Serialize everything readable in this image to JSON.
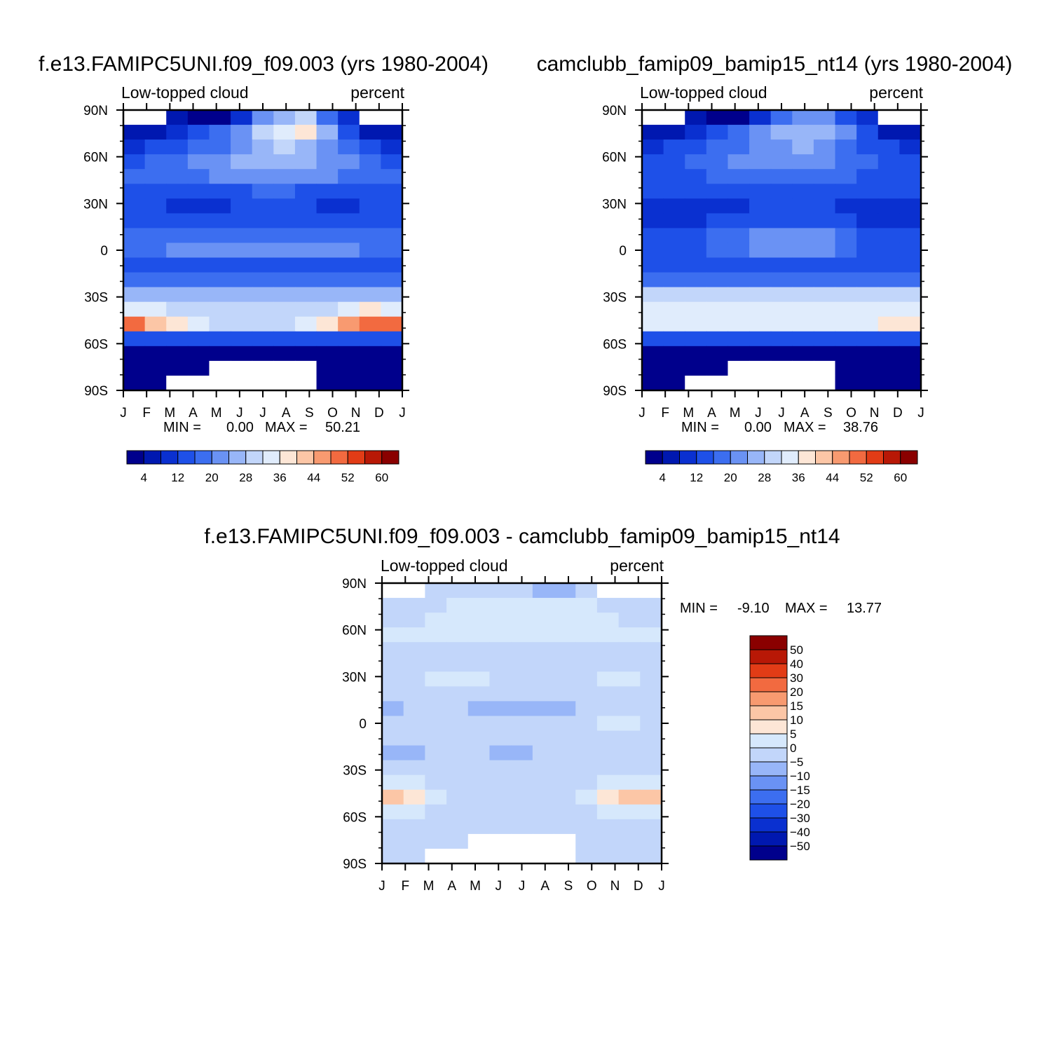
{
  "chart_data": [
    {
      "type": "heatmap",
      "id": "p1",
      "title": "f.e13.FAMIPC5UNI.f09_f09.003 (yrs 1980-2004)",
      "left_label": "Low-topped cloud",
      "right_label": "percent",
      "x_tick_labels": [
        "J",
        "F",
        "M",
        "A",
        "M",
        "J",
        "J",
        "A",
        "S",
        "O",
        "N",
        "D",
        "J"
      ],
      "y_tick_labels": [
        "90N",
        "60N",
        "30N",
        "0",
        "30S",
        "60S",
        "90S"
      ],
      "y_values": [
        90,
        60,
        30,
        0,
        -30,
        -60,
        -90
      ],
      "xlim": [
        0,
        12
      ],
      "ylim": [
        -90,
        90
      ],
      "stats": {
        "min_label": "MIN =",
        "min": "0.00",
        "max_label": "MAX =",
        "max": "50.21"
      },
      "colorbar": {
        "levels": [
          4,
          8,
          12,
          16,
          20,
          24,
          28,
          32,
          36,
          40,
          44,
          48,
          52,
          56,
          60
        ],
        "tick_labels": [
          "4",
          "12",
          "20",
          "28",
          "36",
          "44",
          "52",
          "60"
        ],
        "colors": [
          "#00008c",
          "#0018b0",
          "#0a30d0",
          "#1e50e8",
          "#3c6ef0",
          "#6a92f4",
          "#98b6f8",
          "#c2d6fa",
          "#e0ecfc",
          "#fde6d6",
          "#fcc6a6",
          "#f89a70",
          "#f26a40",
          "#e23c16",
          "#b81806",
          "#8a0000"
        ]
      },
      "field_grid": [
        [
          0,
          0,
          6,
          3,
          2,
          8,
          22,
          26,
          28,
          18,
          8,
          0,
          0
        ],
        [
          6,
          6,
          8,
          12,
          18,
          22,
          30,
          34,
          36,
          24,
          14,
          6,
          6
        ],
        [
          10,
          12,
          14,
          16,
          18,
          22,
          26,
          28,
          26,
          22,
          16,
          12,
          10
        ],
        [
          14,
          16,
          18,
          20,
          22,
          24,
          26,
          26,
          24,
          22,
          20,
          16,
          14
        ],
        [
          16,
          16,
          18,
          18,
          20,
          20,
          22,
          22,
          20,
          20,
          18,
          16,
          16
        ],
        [
          14,
          14,
          12,
          12,
          14,
          14,
          16,
          16,
          14,
          14,
          12,
          14,
          14
        ],
        [
          12,
          12,
          10,
          10,
          10,
          12,
          12,
          12,
          12,
          10,
          10,
          12,
          12
        ],
        [
          14,
          14,
          14,
          12,
          12,
          12,
          12,
          14,
          14,
          14,
          14,
          14,
          14
        ],
        [
          16,
          16,
          16,
          18,
          18,
          18,
          18,
          18,
          18,
          18,
          18,
          16,
          16
        ],
        [
          18,
          18,
          20,
          20,
          20,
          22,
          22,
          22,
          22,
          20,
          20,
          18,
          18
        ],
        [
          14,
          14,
          14,
          14,
          14,
          14,
          14,
          14,
          14,
          14,
          14,
          14,
          14
        ],
        [
          18,
          18,
          18,
          18,
          18,
          18,
          18,
          18,
          18,
          18,
          18,
          18,
          18
        ],
        [
          26,
          26,
          26,
          26,
          26,
          26,
          26,
          26,
          26,
          26,
          26,
          26,
          26
        ],
        [
          34,
          32,
          30,
          28,
          28,
          28,
          28,
          28,
          28,
          30,
          34,
          36,
          34
        ],
        [
          48,
          42,
          36,
          32,
          30,
          30,
          30,
          30,
          32,
          36,
          44,
          50,
          48
        ],
        [
          12,
          12,
          12,
          12,
          12,
          12,
          12,
          12,
          12,
          12,
          12,
          12,
          12
        ],
        [
          2,
          2,
          2,
          2,
          2,
          2,
          2,
          2,
          2,
          2,
          2,
          2,
          2
        ],
        [
          2,
          2,
          2,
          2,
          0,
          0,
          0,
          0,
          0,
          2,
          2,
          2,
          2
        ],
        [
          2,
          2,
          0,
          0,
          0,
          0,
          0,
          0,
          0,
          2,
          2,
          2,
          2
        ]
      ]
    },
    {
      "type": "heatmap",
      "id": "p2",
      "title": "camclubb_famip09_bamip15_nt14 (yrs 1980-2004)",
      "left_label": "Low-topped cloud",
      "right_label": "percent",
      "x_tick_labels": [
        "J",
        "F",
        "M",
        "A",
        "M",
        "J",
        "J",
        "A",
        "S",
        "O",
        "N",
        "D",
        "J"
      ],
      "y_tick_labels": [
        "90N",
        "60N",
        "30N",
        "0",
        "30S",
        "60S",
        "90S"
      ],
      "y_values": [
        90,
        60,
        30,
        0,
        -30,
        -60,
        -90
      ],
      "xlim": [
        0,
        12
      ],
      "ylim": [
        -90,
        90
      ],
      "stats": {
        "min_label": "MIN =",
        "min": "0.00",
        "max_label": "MAX =",
        "max": "38.76"
      },
      "colorbar": {
        "levels": [
          4,
          8,
          12,
          16,
          20,
          24,
          28,
          32,
          36,
          40,
          44,
          48,
          52,
          56,
          60
        ],
        "tick_labels": [
          "4",
          "12",
          "20",
          "28",
          "36",
          "44",
          "52",
          "60"
        ],
        "colors": [
          "#00008c",
          "#0018b0",
          "#0a30d0",
          "#1e50e8",
          "#3c6ef0",
          "#6a92f4",
          "#98b6f8",
          "#c2d6fa",
          "#e0ecfc",
          "#fde6d6",
          "#fcc6a6",
          "#f89a70",
          "#f26a40",
          "#e23c16",
          "#b81806",
          "#8a0000"
        ]
      },
      "field_grid": [
        [
          0,
          0,
          6,
          3,
          2,
          8,
          18,
          22,
          22,
          14,
          8,
          0,
          0
        ],
        [
          6,
          6,
          8,
          12,
          16,
          20,
          24,
          26,
          26,
          20,
          12,
          6,
          6
        ],
        [
          10,
          12,
          14,
          16,
          18,
          20,
          22,
          24,
          22,
          18,
          14,
          12,
          10
        ],
        [
          14,
          14,
          16,
          18,
          20,
          20,
          22,
          22,
          20,
          18,
          16,
          14,
          14
        ],
        [
          14,
          14,
          14,
          16,
          16,
          16,
          18,
          18,
          16,
          16,
          14,
          14,
          14
        ],
        [
          14,
          12,
          12,
          12,
          14,
          14,
          14,
          14,
          14,
          12,
          12,
          12,
          14
        ],
        [
          10,
          10,
          10,
          10,
          10,
          12,
          12,
          12,
          12,
          10,
          10,
          10,
          10
        ],
        [
          10,
          10,
          10,
          12,
          12,
          12,
          14,
          14,
          12,
          12,
          10,
          10,
          10
        ],
        [
          12,
          12,
          14,
          16,
          18,
          20,
          22,
          22,
          20,
          18,
          14,
          12,
          12
        ],
        [
          14,
          14,
          14,
          16,
          18,
          20,
          22,
          22,
          20,
          16,
          14,
          14,
          14
        ],
        [
          12,
          12,
          12,
          12,
          12,
          12,
          12,
          12,
          12,
          12,
          12,
          12,
          12
        ],
        [
          18,
          18,
          18,
          18,
          18,
          18,
          18,
          18,
          18,
          18,
          18,
          18,
          18
        ],
        [
          28,
          28,
          28,
          28,
          28,
          28,
          28,
          28,
          28,
          28,
          28,
          28,
          28
        ],
        [
          34,
          32,
          32,
          32,
          32,
          32,
          32,
          32,
          32,
          32,
          32,
          34,
          34
        ],
        [
          34,
          34,
          32,
          32,
          32,
          32,
          32,
          32,
          32,
          32,
          34,
          36,
          36
        ],
        [
          12,
          12,
          12,
          12,
          12,
          12,
          12,
          12,
          12,
          12,
          12,
          12,
          12
        ],
        [
          2,
          2,
          2,
          2,
          2,
          2,
          2,
          2,
          2,
          2,
          2,
          2,
          2
        ],
        [
          2,
          2,
          2,
          2,
          0,
          0,
          0,
          0,
          0,
          2,
          2,
          2,
          2
        ],
        [
          2,
          2,
          0,
          0,
          0,
          0,
          0,
          0,
          0,
          2,
          2,
          2,
          2
        ]
      ]
    },
    {
      "type": "heatmap",
      "id": "p3",
      "title": "f.e13.FAMIPC5UNI.f09_f09.003 - camclubb_famip09_bamip15_nt14",
      "left_label": "Low-topped cloud",
      "right_label": "percent",
      "x_tick_labels": [
        "J",
        "F",
        "M",
        "A",
        "M",
        "J",
        "J",
        "A",
        "S",
        "O",
        "N",
        "D",
        "J"
      ],
      "y_tick_labels": [
        "90N",
        "60N",
        "30N",
        "0",
        "30S",
        "60S",
        "90S"
      ],
      "y_values": [
        90,
        60,
        30,
        0,
        -30,
        -60,
        -90
      ],
      "xlim": [
        0,
        12
      ],
      "ylim": [
        -90,
        90
      ],
      "stats": {
        "min_label": "MIN =",
        "min": "-9.10",
        "max_label": "MAX =",
        "max": "13.77"
      },
      "colorbar": {
        "levels": [
          -50,
          -40,
          -30,
          -20,
          -15,
          -10,
          -5,
          0,
          5,
          10,
          15,
          20,
          30,
          40,
          50
        ],
        "tick_labels": [
          "50",
          "40",
          "30",
          "20",
          "15",
          "10",
          "5",
          "0",
          "-5",
          "-10",
          "-15",
          "-20",
          "-30",
          "-40",
          "-50"
        ],
        "colors": [
          "#00008c",
          "#0018b0",
          "#0a30d0",
          "#1e50e8",
          "#3c6ef0",
          "#6a92f4",
          "#98b6f8",
          "#c2d6fa",
          "#d6e8fc",
          "#fde6d6",
          "#fcc6a6",
          "#f89a70",
          "#f26a40",
          "#e23c16",
          "#b81806",
          "#8a0000"
        ]
      },
      "field_grid": [
        [
          0,
          0,
          -1,
          -1,
          -1,
          -1,
          -1,
          -6,
          -6,
          -1,
          0,
          0,
          0
        ],
        [
          -1,
          -1,
          -1,
          2,
          2,
          2,
          2,
          2,
          2,
          2,
          -1,
          -1,
          -1
        ],
        [
          -1,
          -1,
          2,
          2,
          2,
          2,
          2,
          2,
          2,
          2,
          2,
          -1,
          -1
        ],
        [
          2,
          2,
          2,
          2,
          2,
          2,
          2,
          2,
          2,
          2,
          2,
          2,
          2
        ],
        [
          -1,
          -1,
          -1,
          -1,
          -1,
          -1,
          -1,
          -1,
          -1,
          -1,
          -1,
          -1,
          -1
        ],
        [
          -1,
          -1,
          -1,
          -1,
          -1,
          -1,
          -1,
          -1,
          -1,
          -1,
          -1,
          -1,
          -1
        ],
        [
          -1,
          -1,
          2,
          2,
          2,
          -1,
          -1,
          -1,
          -1,
          -1,
          2,
          2,
          -1
        ],
        [
          -1,
          -1,
          -1,
          -1,
          -1,
          -1,
          -1,
          -1,
          -1,
          -1,
          -1,
          -1,
          -1
        ],
        [
          -6,
          -1,
          -1,
          -1,
          -6,
          -6,
          -6,
          -6,
          -6,
          -1,
          -1,
          -1,
          -1
        ],
        [
          -1,
          -1,
          -1,
          -1,
          -1,
          -1,
          -1,
          -1,
          -1,
          -1,
          2,
          2,
          -1
        ],
        [
          -1,
          -1,
          -1,
          -1,
          -1,
          -1,
          -1,
          -1,
          -1,
          -1,
          -1,
          -1,
          -1
        ],
        [
          -6,
          -6,
          -1,
          -1,
          -1,
          -6,
          -6,
          -1,
          -1,
          -1,
          -1,
          -1,
          -1
        ],
        [
          -1,
          -1,
          -1,
          -1,
          -1,
          -1,
          -1,
          -1,
          -1,
          -1,
          -1,
          -1,
          -1
        ],
        [
          2,
          2,
          -1,
          -1,
          -1,
          -1,
          -1,
          -1,
          -1,
          -1,
          2,
          2,
          2
        ],
        [
          12,
          7,
          2,
          -1,
          -1,
          -1,
          -1,
          -1,
          -1,
          2,
          7,
          12,
          12
        ],
        [
          2,
          2,
          -1,
          -1,
          -1,
          -1,
          -1,
          -1,
          -1,
          -1,
          2,
          2,
          2
        ],
        [
          -1,
          -1,
          -1,
          -1,
          -1,
          -1,
          -1,
          -1,
          -1,
          -1,
          -1,
          -1,
          -1
        ],
        [
          -1,
          -1,
          -1,
          -1,
          0,
          0,
          0,
          0,
          0,
          -1,
          -1,
          -1,
          -1
        ],
        [
          -1,
          -1,
          0,
          0,
          0,
          0,
          0,
          0,
          0,
          -1,
          -1,
          -1,
          -1
        ]
      ]
    }
  ]
}
